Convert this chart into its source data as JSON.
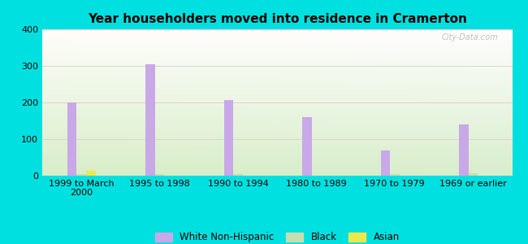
{
  "title": "Year householders moved into residence in Cramerton",
  "categories": [
    "1999 to March\n2000",
    "1995 to 1998",
    "1990 to 1994",
    "1980 to 1989",
    "1970 to 1979",
    "1969 or earlier"
  ],
  "white_non_hispanic": [
    200,
    305,
    207,
    160,
    70,
    140
  ],
  "black": [
    4,
    4,
    4,
    0,
    4,
    7
  ],
  "asian": [
    14,
    0,
    0,
    0,
    0,
    0
  ],
  "bar_width": 0.12,
  "colors": {
    "white_non_hispanic": "#c9a8e8",
    "black": "#c8ddb0",
    "asian": "#ede84a"
  },
  "background_outer": "#00e0e0",
  "ylim": [
    0,
    400
  ],
  "yticks": [
    0,
    100,
    200,
    300,
    400
  ],
  "legend_labels": [
    "White Non-Hispanic",
    "Black",
    "Asian"
  ],
  "watermark": "City-Data.com"
}
